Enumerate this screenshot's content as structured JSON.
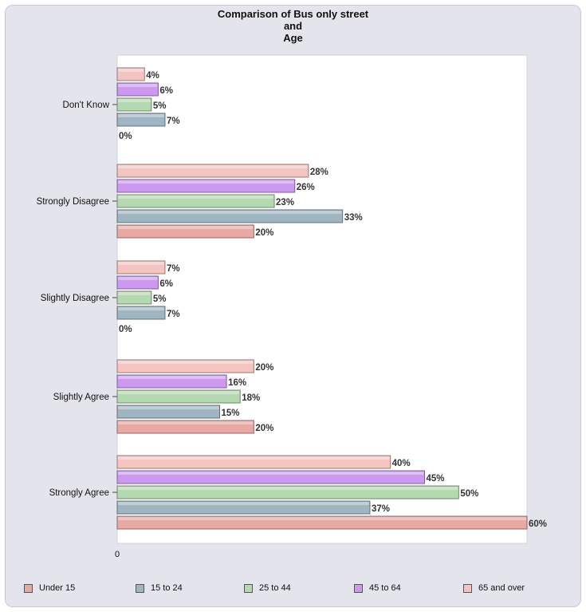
{
  "chart_data": {
    "type": "bar",
    "orientation": "horizontal",
    "title_lines": [
      "Comparison of Bus only street",
      "and",
      "Age"
    ],
    "categories": [
      "Don't Know",
      "Strongly Disagree",
      "Slightly Disagree",
      "Slightly Agree",
      "Strongly Agree"
    ],
    "series": [
      {
        "name": "65 and over",
        "values": [
          4,
          28,
          7,
          20,
          40
        ]
      },
      {
        "name": "45 to 64",
        "values": [
          6,
          26,
          6,
          16,
          45
        ]
      },
      {
        "name": "25 to 44",
        "values": [
          5,
          23,
          5,
          18,
          50
        ]
      },
      {
        "name": "15 to 24",
        "values": [
          7,
          33,
          7,
          15,
          37
        ]
      },
      {
        "name": "Under 15",
        "values": [
          0,
          20,
          0,
          20,
          60
        ]
      }
    ],
    "value_suffix": "%",
    "xlim": [
      0,
      60
    ],
    "x_tick_labels": [
      "0"
    ],
    "grid": false,
    "legend_position": "bottom",
    "legend_order": [
      "Under 15",
      "15 to 24",
      "25 to 44",
      "45 to 64",
      "65 and over"
    ]
  },
  "colors": {
    "65 and over": "#f4c4c0",
    "45 to 64": "#cc99f0",
    "25 to 44": "#b4d8b0",
    "15 to 24": "#9fb5c2",
    "Under 15": "#e8a8a4",
    "plot_background": "#ffffff",
    "frame_background": "#e4e4ec"
  }
}
